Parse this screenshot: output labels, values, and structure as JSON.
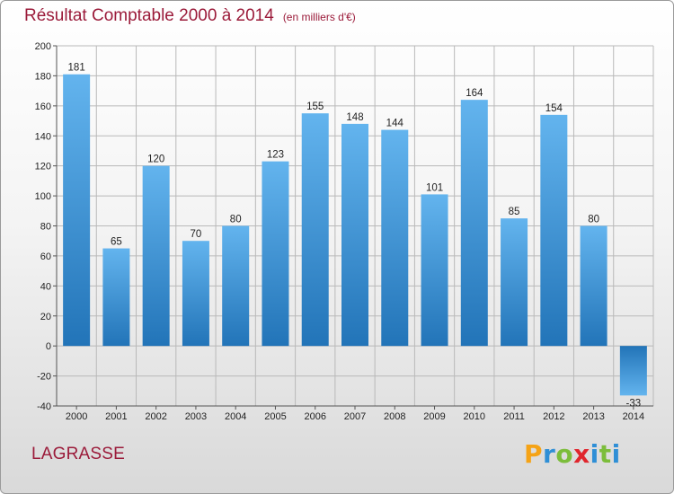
{
  "title": "Résultat Comptable 2000 à 2014",
  "title_unit": "(en milliers d'€)",
  "town": "LAGRASSE",
  "logo": {
    "letters": [
      "P",
      "r",
      "o",
      "x",
      "i",
      "t",
      "i"
    ],
    "colors": [
      "#f5a316",
      "#2f8fd6",
      "#7cbd3b",
      "#e0262d",
      "#2f8fd6",
      "#7cbd3b",
      "#2f8fd6"
    ]
  },
  "colors": {
    "title": "#9b1b3a",
    "bar_light": "#63b4ee",
    "bar_dark": "#2274b8",
    "grid": "#b9b9b9"
  },
  "chart_data": {
    "type": "bar",
    "title": "Résultat Comptable 2000 à 2014",
    "xlabel": "",
    "ylabel": "",
    "ylim": [
      -40,
      200
    ],
    "yticks": [
      -40,
      -20,
      0,
      20,
      40,
      60,
      80,
      100,
      120,
      140,
      160,
      180,
      200
    ],
    "grid": true,
    "categories": [
      "2000",
      "2001",
      "2002",
      "2003",
      "2004",
      "2005",
      "2006",
      "2007",
      "2008",
      "2009",
      "2010",
      "2011",
      "2012",
      "2013",
      "2014"
    ],
    "values": [
      181,
      65,
      120,
      70,
      80,
      123,
      155,
      148,
      144,
      101,
      164,
      85,
      154,
      80,
      -33
    ]
  }
}
